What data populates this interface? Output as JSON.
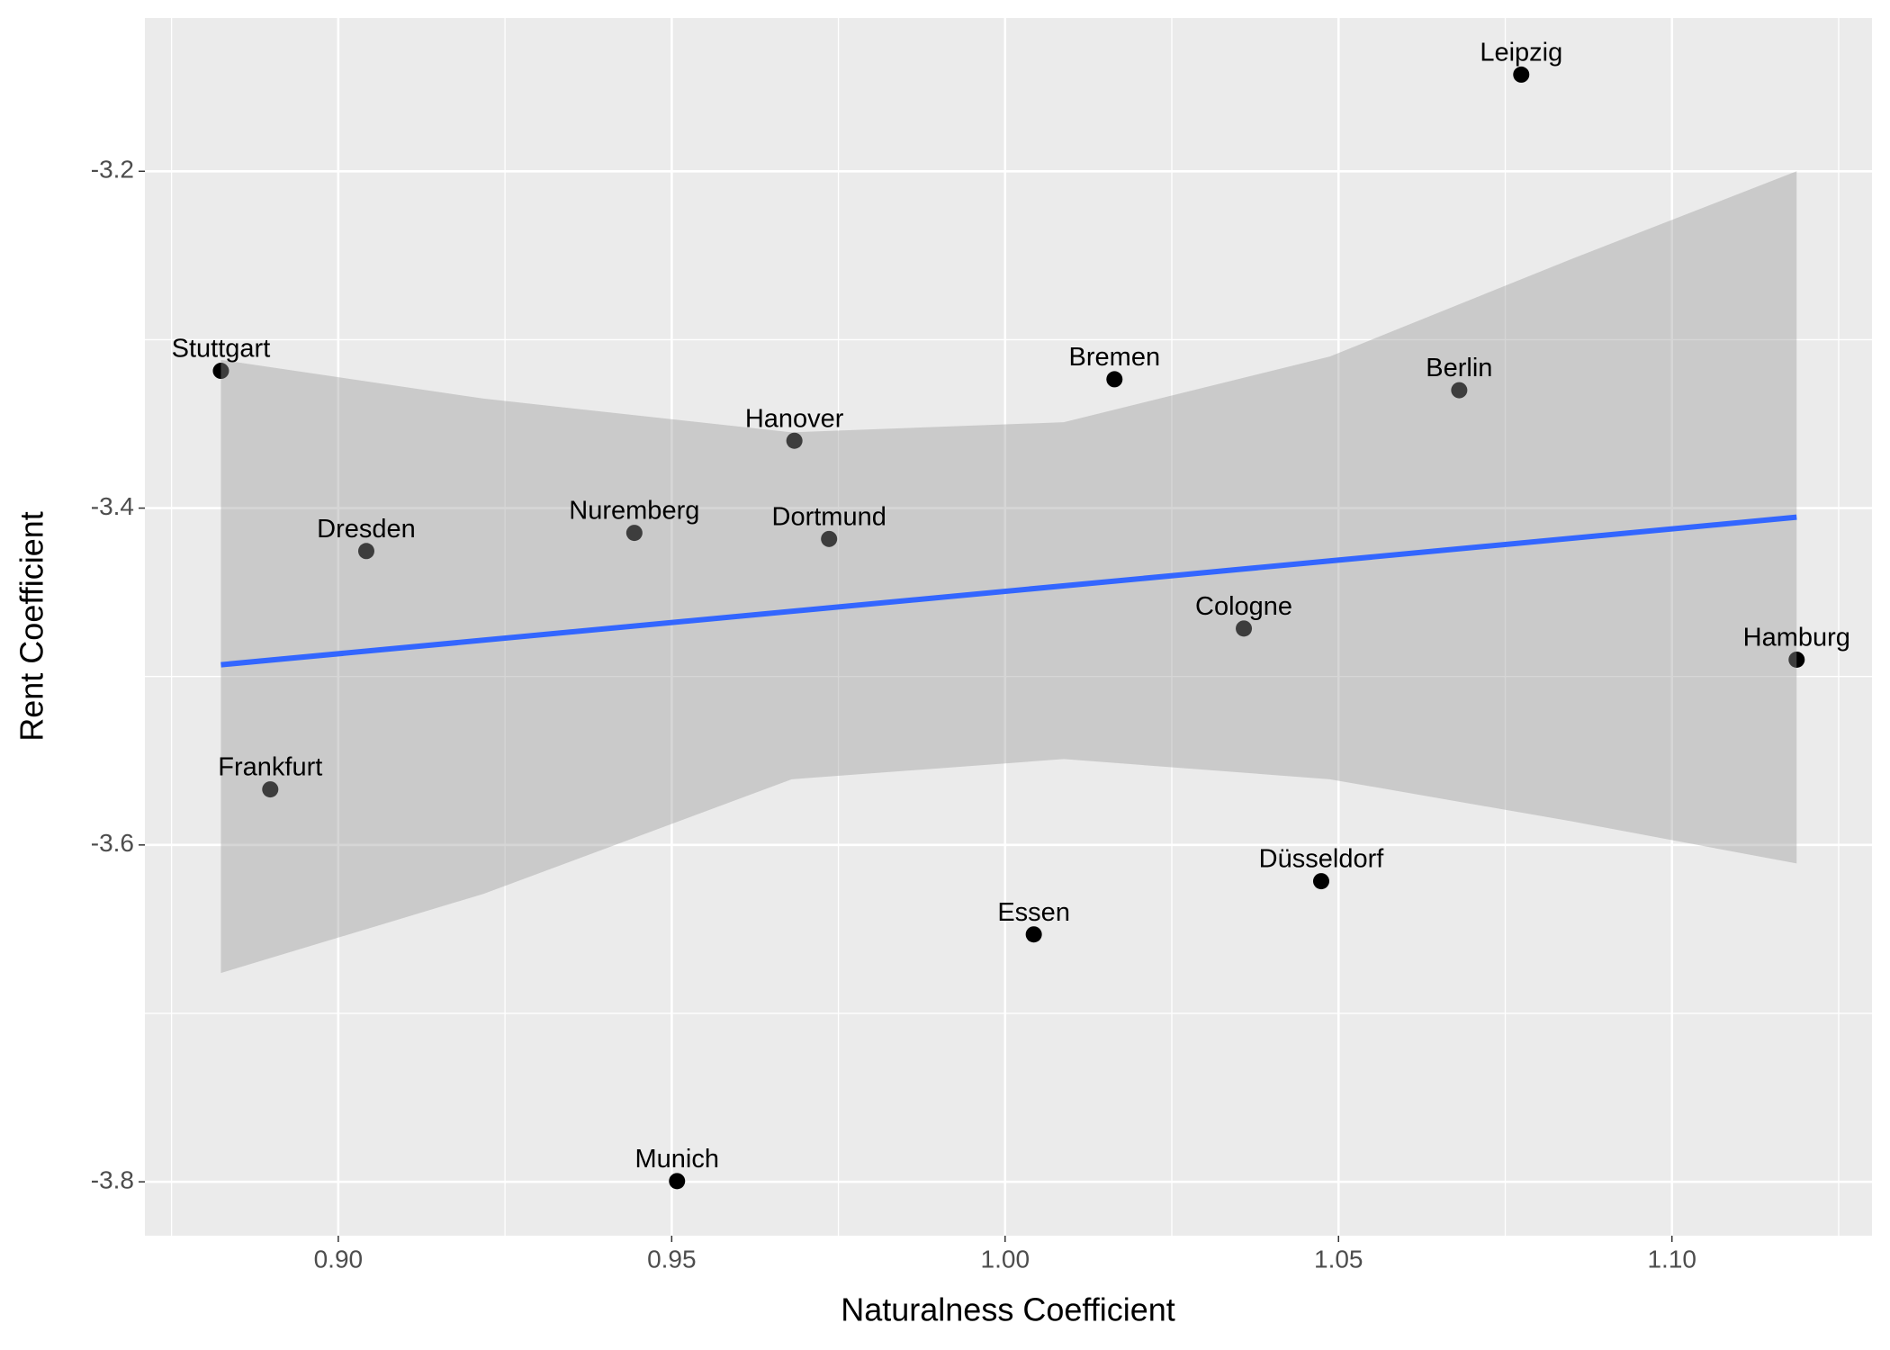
{
  "chart_data": {
    "type": "scatter",
    "x_label": "Naturalness Coefficient",
    "y_label": "Rent Coefficient",
    "xlim": [
      0.871,
      1.13
    ],
    "ylim": [
      -3.832,
      -3.109
    ],
    "xticks": [
      {
        "value": 0.9,
        "label": "0.90"
      },
      0.95,
      {
        "value": 1.0,
        "label": "1.00"
      },
      1.05,
      {
        "value": 1.1,
        "label": "1.10"
      }
    ],
    "yticks": [
      -3.2,
      -3.4,
      -3.6,
      -3.8
    ],
    "x_minor_ticks": [
      0.875,
      0.925,
      0.975,
      1.025,
      1.075,
      1.125
    ],
    "y_minor_ticks": [
      -3.3,
      -3.5,
      -3.7
    ],
    "grid": true,
    "points": {
      "color": "#000000",
      "labels": [
        "Leipzig",
        "Stuttgart",
        "Bremen",
        "Berlin",
        "Hanover",
        "Nuremberg",
        "Dortmund",
        "Dresden",
        "Cologne",
        "Hamburg",
        "Frankfurt",
        "Düsseldorf",
        "Essen",
        "Munich"
      ],
      "x": [
        1.0774,
        0.8824,
        1.0164,
        1.0681,
        0.9684,
        0.9444,
        0.9736,
        0.9042,
        1.0358,
        1.1187,
        0.8898,
        1.0474,
        1.0043,
        0.9508
      ],
      "values": [
        -3.1426,
        -3.3185,
        -3.3235,
        -3.33,
        -3.36,
        -3.4147,
        -3.4183,
        -3.4255,
        -3.4715,
        -3.49,
        -3.567,
        -3.6215,
        -3.6531,
        -3.7996
      ]
    },
    "fit": {
      "color": "#3366ff",
      "x": [
        0.8824,
        1.1187
      ],
      "values": [
        -3.493,
        -3.4054
      ]
    },
    "band": {
      "color": "#999999",
      "x": [
        0.8824,
        0.9218,
        0.968,
        1.0088,
        1.0487,
        1.085,
        1.1187
      ],
      "upper": [
        -3.312,
        -3.335,
        -3.355,
        -3.349,
        -3.31,
        -3.252,
        -3.2
      ],
      "lower": [
        -3.676,
        -3.629,
        -3.561,
        -3.549,
        -3.561,
        -3.586,
        -3.611
      ]
    }
  }
}
